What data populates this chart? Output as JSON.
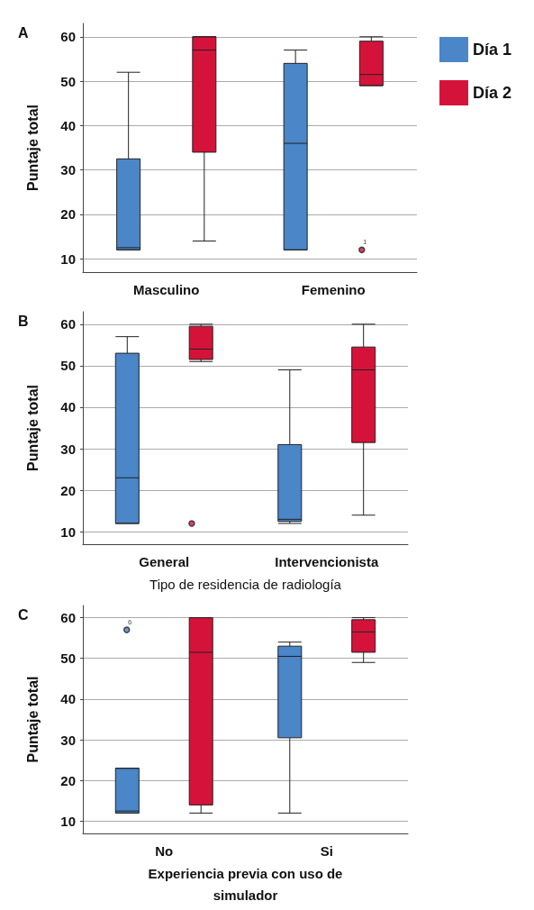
{
  "chart_data": [
    {
      "type": "box",
      "categories": [
        "Masculino",
        "Femenino"
      ],
      "ylabel": "Puntaje total",
      "ylim": [
        7,
        63
      ],
      "yticks": [
        10,
        20,
        30,
        40,
        50,
        60
      ],
      "grid": "y",
      "legend": "right",
      "annotations": [
        "A",
        "1"
      ],
      "series": [
        {
          "name": "Día 1",
          "color": "#4a86c8",
          "boxes": [
            {
              "low": 12,
              "q1": 12,
              "median": 12.5,
              "q3": 32.5,
              "high": 52
            },
            {
              "low": 12,
              "q1": 12,
              "median": 36,
              "q3": 54,
              "high": 57
            }
          ]
        },
        {
          "name": "Día 2",
          "color": "#d5133a",
          "boxes": [
            {
              "low": 14,
              "q1": 34,
              "median": 57,
              "q3": 60,
              "high": 60
            },
            {
              "low": 49,
              "q1": 49,
              "median": 51.5,
              "q3": 59,
              "high": 60,
              "outliers": [
                12
              ]
            }
          ]
        }
      ]
    },
    {
      "type": "box",
      "categories": [
        "General",
        "Intervencionista"
      ],
      "xlabel": "Tipo de residencia de radiología",
      "ylabel": "Puntaje total",
      "ylim": [
        7,
        63
      ],
      "yticks": [
        10,
        20,
        30,
        40,
        50,
        60
      ],
      "grid": "y",
      "annotations": [
        "B"
      ],
      "series": [
        {
          "color": "#4a86c8",
          "boxes": [
            {
              "low": 12,
              "q1": 12,
              "median": 23,
              "q3": 53,
              "high": 57
            },
            {
              "low": 12,
              "q1": 12.5,
              "median": 13,
              "q3": 31,
              "high": 49
            }
          ]
        },
        {
          "color": "#d5133a",
          "boxes": [
            {
              "low": 51,
              "q1": 51.5,
              "median": 54,
              "q3": 59.5,
              "high": 60,
              "outliers": [
                12
              ]
            },
            {
              "low": 14,
              "q1": 31.5,
              "median": 49,
              "q3": 54.5,
              "high": 60
            }
          ]
        }
      ]
    },
    {
      "type": "box",
      "categories": [
        "No",
        "Si"
      ],
      "xlabel": "Experiencia previa con uso de simulador",
      "ylabel": "Puntaje total",
      "ylim": [
        7,
        63
      ],
      "yticks": [
        10,
        20,
        30,
        40,
        50,
        60
      ],
      "grid": "y",
      "annotations": [
        "C",
        "6"
      ],
      "series": [
        {
          "color": "#4a86c8",
          "boxes": [
            {
              "low": 12,
              "q1": 12,
              "median": 12.5,
              "q3": 23,
              "high": 23,
              "outliers": [
                57
              ]
            },
            {
              "low": 12,
              "q1": 30.5,
              "median": 50.5,
              "q3": 53,
              "high": 54
            }
          ]
        },
        {
          "color": "#d5133a",
          "boxes": [
            {
              "low": 12,
              "q1": 14,
              "median": 51.5,
              "q3": 60,
              "high": 60
            },
            {
              "low": 49,
              "q1": 51.5,
              "median": 56.5,
              "q3": 59.5,
              "high": 60
            }
          ]
        }
      ]
    }
  ]
}
